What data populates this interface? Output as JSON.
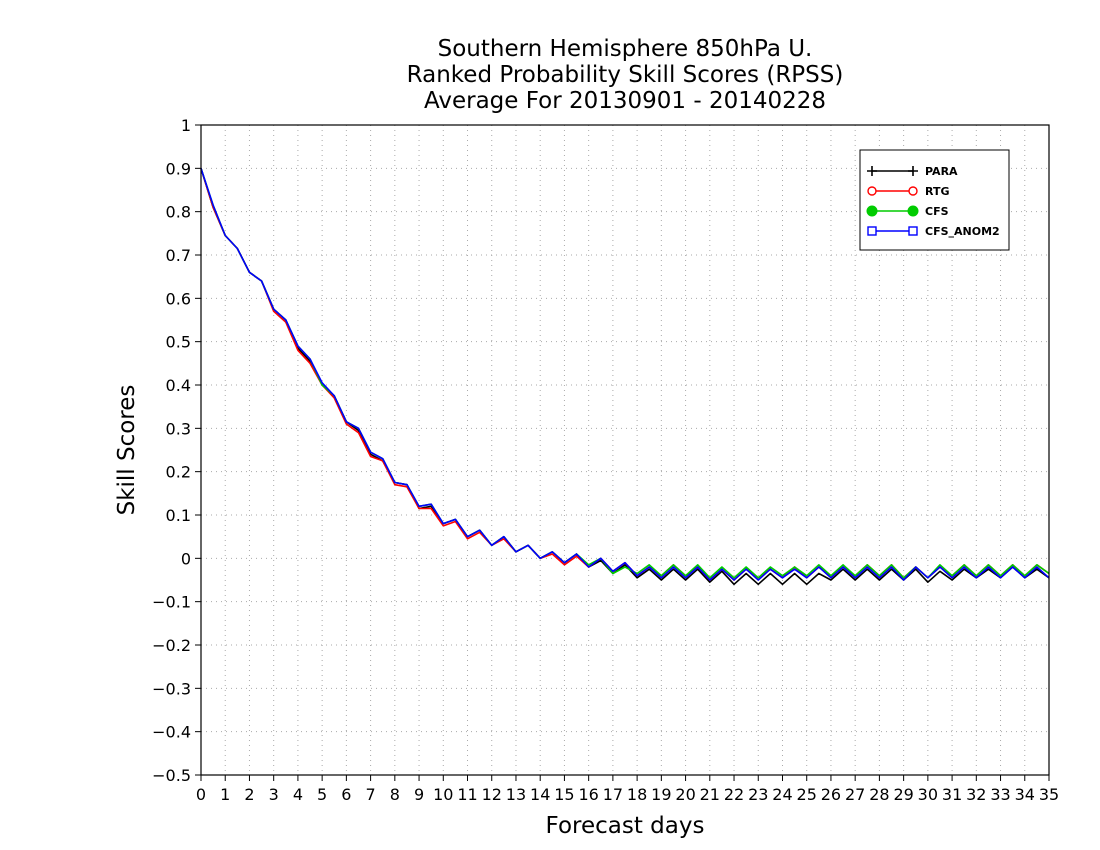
{
  "chart_data": {
    "type": "line",
    "title": [
      "Southern Hemisphere 850hPa U.",
      "Ranked Probability Skill Scores (RPSS)",
      "Average For 20130901 - 20140228"
    ],
    "xlabel": "Forecast days",
    "ylabel": "Skill Scores",
    "xlim": [
      0,
      35
    ],
    "ylim": [
      -0.5,
      1
    ],
    "x_ticks": [
      0,
      1,
      2,
      3,
      4,
      5,
      6,
      7,
      8,
      9,
      10,
      11,
      12,
      13,
      14,
      15,
      16,
      17,
      18,
      19,
      20,
      21,
      22,
      23,
      24,
      25,
      26,
      27,
      28,
      29,
      30,
      31,
      32,
      33,
      34,
      35
    ],
    "y_ticks": [
      1,
      0.9,
      0.8,
      0.7,
      0.6,
      0.5,
      0.4,
      0.3,
      0.2,
      0.1,
      0,
      -0.1,
      -0.2,
      -0.3,
      -0.4,
      -0.5
    ],
    "grid": true,
    "legend_position": "top-right",
    "x_step": 0.5,
    "series": [
      {
        "name": "PARA",
        "color": "#000000",
        "marker": "plus",
        "values": [
          0.9,
          0.81,
          0.745,
          0.715,
          0.66,
          0.64,
          0.575,
          0.55,
          0.485,
          0.455,
          0.4,
          0.375,
          0.315,
          0.295,
          0.24,
          0.225,
          0.175,
          0.17,
          0.115,
          0.12,
          0.08,
          0.09,
          0.05,
          0.065,
          0.03,
          0.05,
          0.015,
          0.03,
          0,
          0.015,
          -0.01,
          0.01,
          -0.02,
          -0.005,
          -0.035,
          -0.015,
          -0.045,
          -0.025,
          -0.05,
          -0.025,
          -0.05,
          -0.025,
          -0.055,
          -0.03,
          -0.06,
          -0.035,
          -0.06,
          -0.035,
          -0.06,
          -0.035,
          -0.06,
          -0.035,
          -0.05,
          -0.025,
          -0.05,
          -0.025,
          -0.05,
          -0.025,
          -0.05,
          -0.025,
          -0.055,
          -0.03,
          -0.05,
          -0.025,
          -0.045,
          -0.025,
          -0.045,
          -0.02,
          -0.045,
          -0.025,
          -0.045
        ]
      },
      {
        "name": "RTG",
        "color": "#ff0000",
        "marker": "open-circle",
        "values": [
          0.9,
          0.81,
          0.745,
          0.715,
          0.66,
          0.64,
          0.57,
          0.545,
          0.48,
          0.45,
          0.4,
          0.37,
          0.31,
          0.29,
          0.235,
          0.225,
          0.17,
          0.165,
          0.115,
          0.115,
          0.075,
          0.085,
          0.045,
          0.06,
          0.03,
          0.045,
          0.015,
          0.03,
          0,
          0.01,
          -0.015,
          0.005,
          -0.02,
          0,
          -0.03,
          -0.01,
          -0.04,
          -0.02,
          -0.04,
          -0.015,
          -0.04,
          -0.02,
          -0.05,
          -0.025,
          -0.05,
          -0.025,
          -0.045,
          -0.025,
          -0.045,
          -0.02,
          -0.045,
          -0.02,
          -0.04,
          -0.02,
          -0.04,
          -0.015,
          -0.04,
          -0.015,
          -0.045,
          -0.02,
          -0.045,
          -0.02,
          -0.04,
          -0.015,
          -0.04,
          -0.015,
          -0.04,
          -0.015,
          -0.04,
          -0.015,
          -0.035
        ]
      },
      {
        "name": "CFS",
        "color": "#00cc00",
        "marker": "filled-circle",
        "values": [
          0.9,
          0.815,
          0.745,
          0.715,
          0.66,
          0.64,
          0.575,
          0.55,
          0.49,
          0.46,
          0.4,
          0.375,
          0.315,
          0.3,
          0.245,
          0.23,
          0.175,
          0.17,
          0.12,
          0.125,
          0.08,
          0.09,
          0.05,
          0.065,
          0.03,
          0.05,
          0.015,
          0.03,
          0,
          0.015,
          -0.01,
          0.01,
          -0.015,
          0,
          -0.035,
          -0.02,
          -0.035,
          -0.015,
          -0.04,
          -0.015,
          -0.04,
          -0.015,
          -0.045,
          -0.02,
          -0.045,
          -0.02,
          -0.045,
          -0.02,
          -0.04,
          -0.02,
          -0.04,
          -0.015,
          -0.04,
          -0.015,
          -0.04,
          -0.015,
          -0.04,
          -0.015,
          -0.045,
          -0.02,
          -0.045,
          -0.015,
          -0.04,
          -0.015,
          -0.04,
          -0.015,
          -0.04,
          -0.015,
          -0.04,
          -0.015,
          -0.035
        ]
      },
      {
        "name": "CFS_ANOM2",
        "color": "#0000ff",
        "marker": "open-square",
        "values": [
          0.9,
          0.815,
          0.745,
          0.715,
          0.66,
          0.64,
          0.575,
          0.55,
          0.49,
          0.46,
          0.405,
          0.375,
          0.315,
          0.3,
          0.245,
          0.23,
          0.175,
          0.17,
          0.12,
          0.125,
          0.08,
          0.09,
          0.05,
          0.065,
          0.03,
          0.05,
          0.015,
          0.03,
          0,
          0.015,
          -0.01,
          0.01,
          -0.02,
          0,
          -0.03,
          -0.01,
          -0.04,
          -0.02,
          -0.045,
          -0.02,
          -0.045,
          -0.02,
          -0.05,
          -0.025,
          -0.05,
          -0.025,
          -0.05,
          -0.025,
          -0.045,
          -0.025,
          -0.045,
          -0.02,
          -0.045,
          -0.02,
          -0.045,
          -0.02,
          -0.045,
          -0.02,
          -0.05,
          -0.02,
          -0.045,
          -0.02,
          -0.045,
          -0.02,
          -0.045,
          -0.02,
          -0.045,
          -0.02,
          -0.045,
          -0.02,
          -0.045
        ]
      }
    ]
  }
}
